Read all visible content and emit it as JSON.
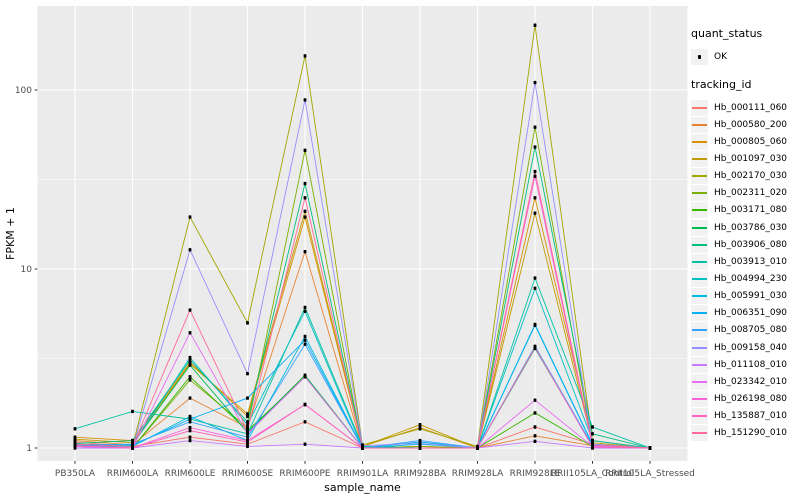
{
  "colors": {
    "panel_bg": "#EBEBEB",
    "grid": "#FFFFFF",
    "legend_key_bg": "#F2F2F2",
    "tick_text": "#4D4D4D",
    "axis_title_text": "#000000",
    "tick_mark": "#333333",
    "point": "#000000",
    "outer_bg": "#FFFFFF"
  },
  "legend": {
    "quant_status_title": "quant_status",
    "ok_label": "OK",
    "tracking_id_title": "tracking_id"
  },
  "chart_data": {
    "type": "line",
    "title": "",
    "xlabel": "sample_name",
    "ylabel": "FPKM + 1",
    "y_scale": "log10",
    "y_ticks": [
      1,
      10,
      100
    ],
    "y_minor": [
      3.1623,
      31.623
    ],
    "ylim": [
      0.85,
      295
    ],
    "grid": "on",
    "legend_position": "right",
    "point_shape": "small black rect (quant_status = OK)",
    "categories": [
      "PB350LA",
      "RRIM600LA",
      "RRIM600LE",
      "RRIM600SE",
      "RRIM600PE",
      "RRIM901LA",
      "RRIM928BA",
      "RRIM928LA",
      "RRIM928LE",
      "RRII105LA_Control",
      "RRII105LA_Stressed"
    ],
    "series": [
      {
        "name": "Hb_000111_060",
        "color": "#F8766D",
        "values": [
          1.08,
          1.02,
          1.15,
          1.05,
          1.4,
          1.0,
          1.0,
          1.0,
          1.31,
          1.05,
          1.0
        ]
      },
      {
        "name": "Hb_000580_200",
        "color": "#EA8331",
        "values": [
          1.1,
          1.04,
          1.9,
          1.3,
          12.5,
          1.0,
          1.02,
          1.0,
          1.17,
          1.03,
          1.0
        ]
      },
      {
        "name": "Hb_000805_060",
        "color": "#D89000",
        "values": [
          1.15,
          1.1,
          3.0,
          1.5,
          19.5,
          1.02,
          1.3,
          1.0,
          25.0,
          1.1,
          1.0
        ]
      },
      {
        "name": "Hb_001097_030",
        "color": "#C09B00",
        "values": [
          1.12,
          1.07,
          2.95,
          1.55,
          21.0,
          1.02,
          1.35,
          1.0,
          20.5,
          1.07,
          1.0
        ]
      },
      {
        "name": "Hb_002170_030",
        "color": "#A3A500",
        "values": [
          1.05,
          1.02,
          19.5,
          5.0,
          155,
          1.04,
          1.28,
          1.02,
          230,
          1.1,
          1.0
        ]
      },
      {
        "name": "Hb_002311_020",
        "color": "#7CAE00",
        "values": [
          1.02,
          1.0,
          2.4,
          1.3,
          46.0,
          1.0,
          1.02,
          1.0,
          62.0,
          1.05,
          1.0
        ]
      },
      {
        "name": "Hb_003171_080",
        "color": "#39B600",
        "values": [
          1.03,
          1.0,
          2.5,
          1.25,
          2.5,
          1.0,
          1.0,
          1.0,
          1.57,
          1.02,
          1.0
        ]
      },
      {
        "name": "Hb_003786_030",
        "color": "#00BB4E",
        "values": [
          1.03,
          1.05,
          2.9,
          1.22,
          2.55,
          1.0,
          1.0,
          1.0,
          3.6,
          1.03,
          1.0
        ]
      },
      {
        "name": "Hb_003906_080",
        "color": "#00BF7D",
        "values": [
          1.06,
          1.1,
          3.1,
          1.4,
          30.0,
          1.02,
          1.0,
          1.0,
          48.0,
          1.2,
          1.0
        ]
      },
      {
        "name": "Hb_003913_010",
        "color": "#00C1A3",
        "values": [
          1.28,
          1.6,
          1.45,
          1.2,
          6.1,
          1.02,
          1.0,
          1.0,
          8.9,
          1.31,
          1.0
        ]
      },
      {
        "name": "Hb_004994_230",
        "color": "#00BFC4",
        "values": [
          1.05,
          1.04,
          3.2,
          1.35,
          5.8,
          1.0,
          1.0,
          1.0,
          7.8,
          1.1,
          1.0
        ]
      },
      {
        "name": "Hb_005991_030",
        "color": "#00BAE0",
        "values": [
          1.02,
          1.02,
          1.5,
          1.1,
          4.2,
          1.0,
          1.05,
          1.0,
          4.9,
          1.05,
          1.0
        ]
      },
      {
        "name": "Hb_006351_090",
        "color": "#00B0F6",
        "values": [
          1.03,
          1.03,
          1.45,
          1.9,
          4.0,
          1.0,
          1.08,
          1.0,
          4.85,
          1.04,
          1.0
        ]
      },
      {
        "name": "Hb_008705_080",
        "color": "#35A2FF",
        "values": [
          1.04,
          1.05,
          1.4,
          1.15,
          3.8,
          1.0,
          1.1,
          1.0,
          3.7,
          1.03,
          1.0
        ]
      },
      {
        "name": "Hb_009158_040",
        "color": "#9590FF",
        "values": [
          1.02,
          1.0,
          12.8,
          2.6,
          88.0,
          1.03,
          1.06,
          1.0,
          110,
          1.05,
          1.0
        ]
      },
      {
        "name": "Hb_011108_010",
        "color": "#C77CFF",
        "values": [
          1.0,
          1.0,
          1.1,
          1.02,
          1.05,
          1.0,
          1.0,
          1.0,
          1.09,
          1.0,
          1.0
        ]
      },
      {
        "name": "Hb_023342_010",
        "color": "#E76BF3",
        "values": [
          1.02,
          1.0,
          4.4,
          1.2,
          2.5,
          1.0,
          1.0,
          1.0,
          1.85,
          1.02,
          1.0
        ]
      },
      {
        "name": "Hb_026198_080",
        "color": "#FA62DB",
        "values": [
          1.02,
          1.0,
          1.3,
          1.1,
          1.75,
          1.0,
          1.0,
          1.0,
          33.0,
          1.02,
          1.0
        ]
      },
      {
        "name": "Hb_135887_010",
        "color": "#FF62BC",
        "values": [
          1.03,
          1.0,
          1.25,
          1.08,
          1.75,
          1.0,
          1.0,
          1.0,
          3.65,
          1.01,
          1.0
        ]
      },
      {
        "name": "Hb_151290_010",
        "color": "#FF6A98",
        "values": [
          1.05,
          1.02,
          5.9,
          1.25,
          25.0,
          1.0,
          1.0,
          1.0,
          35.0,
          1.04,
          1.0
        ]
      }
    ]
  }
}
